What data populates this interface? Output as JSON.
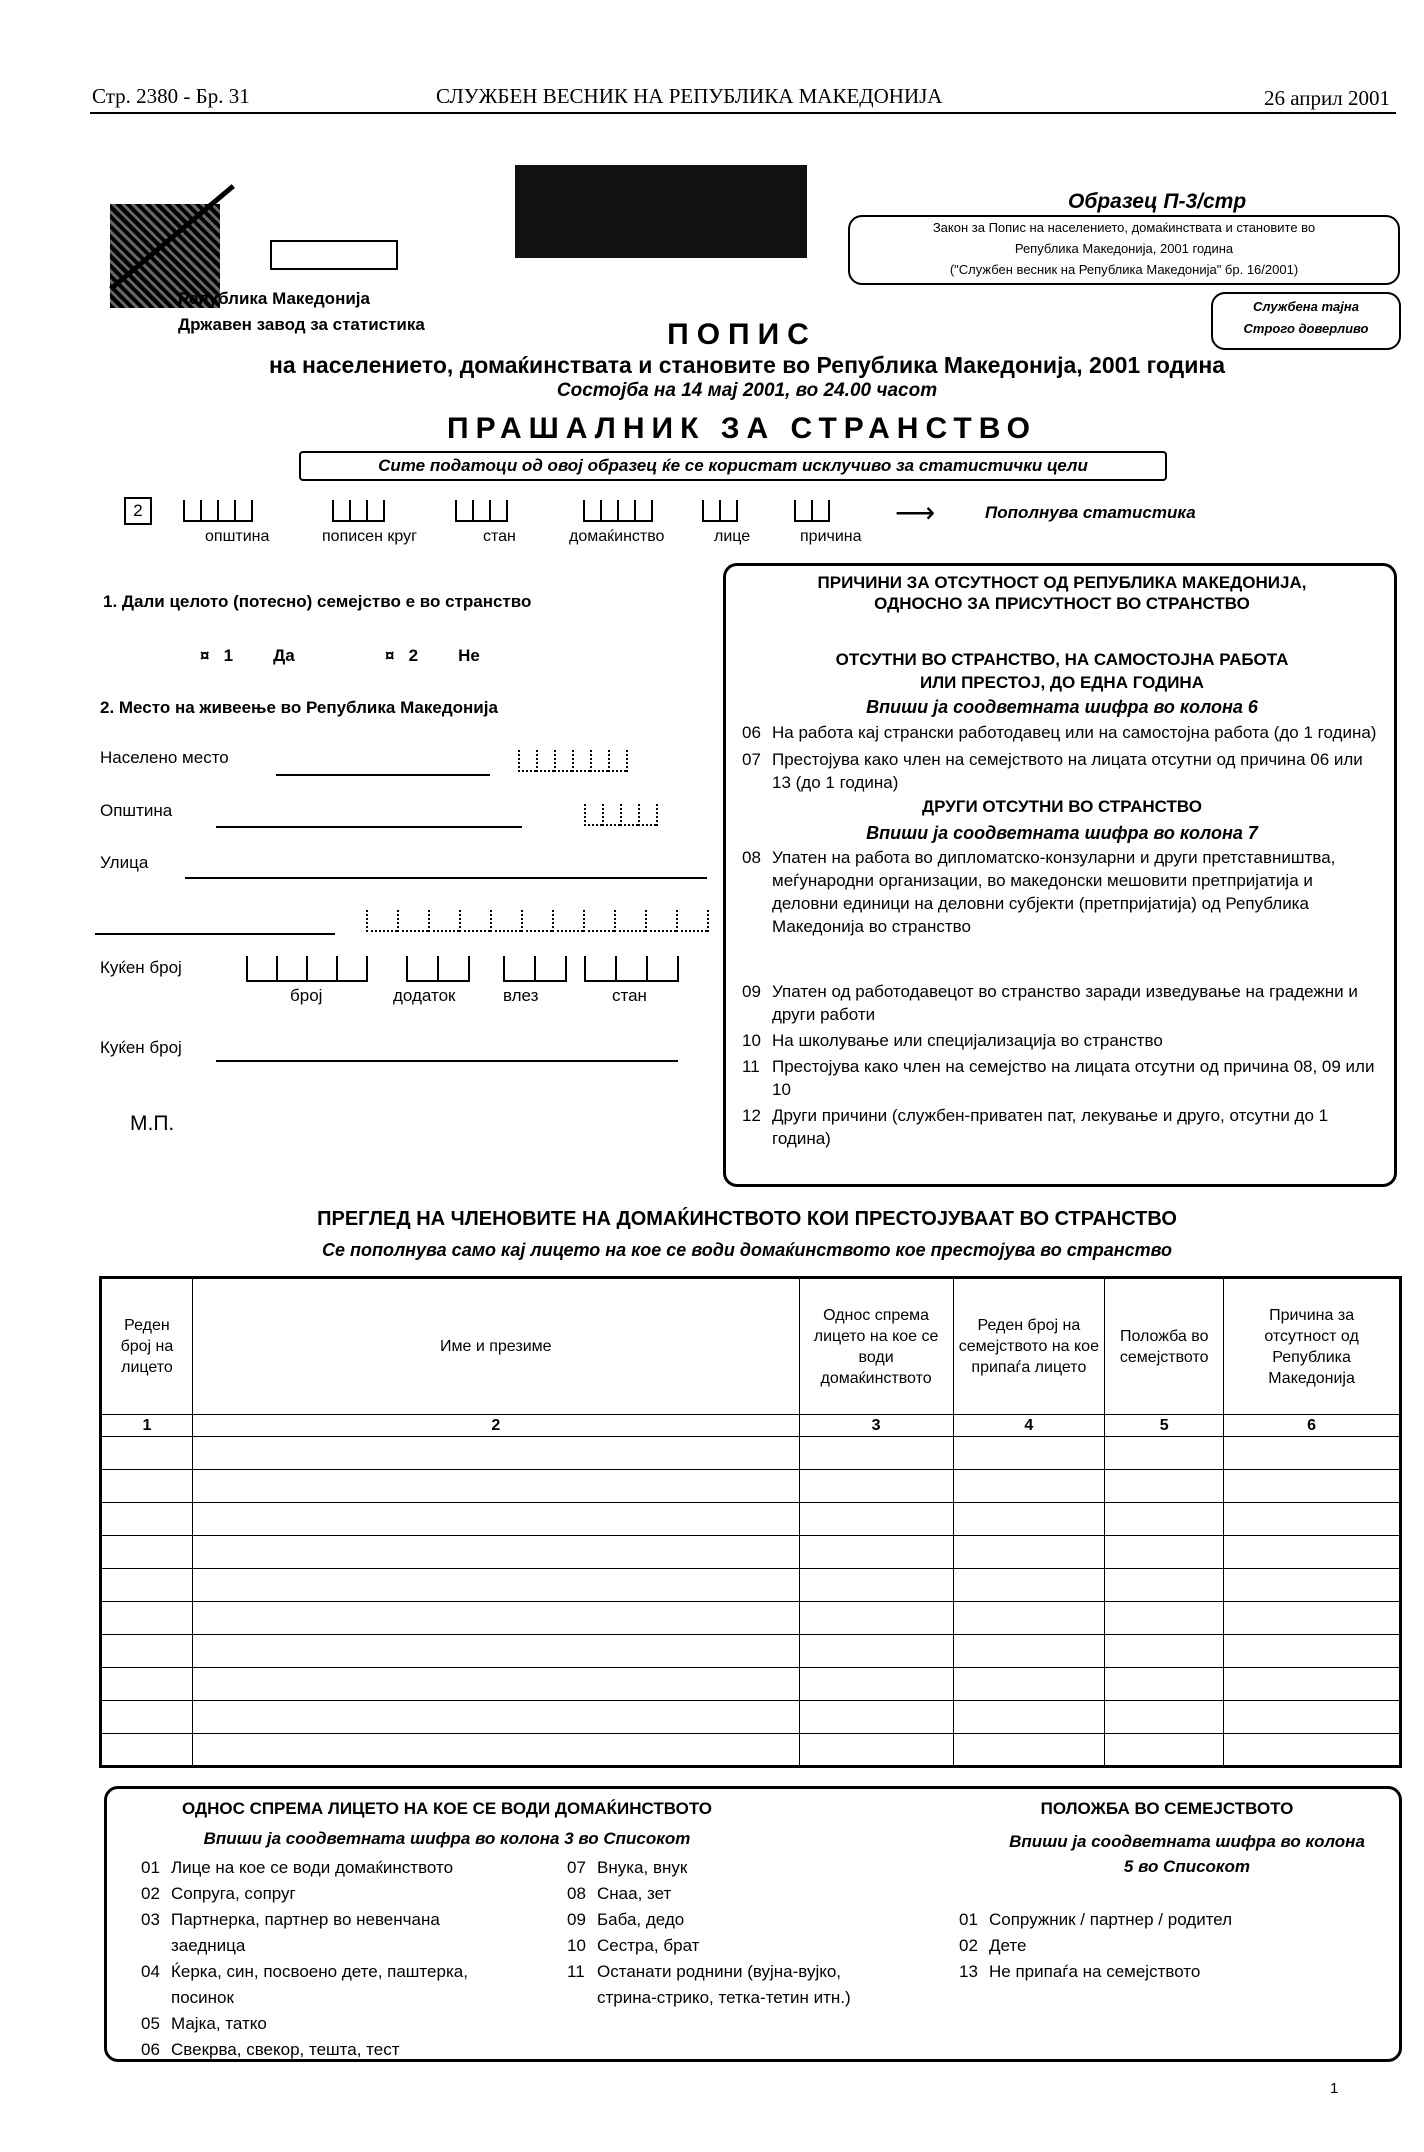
{
  "header": {
    "left": "Стр. 2380 - Бр. 31",
    "center": "СЛУЖБЕН ВЕСНИК НА РЕПУБЛИКА МАКЕДОНИЈА",
    "right": "26 април 2001"
  },
  "issuer": {
    "line1": "Република Македонија",
    "line2": "Државен завод за статистика"
  },
  "form_code": "Образец  П-3/стр",
  "law": {
    "line1": "Закон за  Попис на населението, домаќинствата и становите во",
    "line2": "Република   Македонија, 2001 година",
    "line3": "(\"Службен весник на Република Македонија\" бр.  16/2001)"
  },
  "confidential": {
    "line1": "Службена тајна",
    "line2": "Строго доверливо"
  },
  "title": "ПОПИС",
  "subtitle": "на населението, домаќинствата и становите во Република Македонија, 2001 година",
  "date_line": "Состојба на 14 мај 2001, во 24.00 часот",
  "form_title": "ПРАШАЛНИК ЗА СТРАНСТВО",
  "notice": "Сите податоци од овој образец ќе се користат исклучиво  за статистички цели",
  "codes": {
    "prefix": "2",
    "labels": [
      "општина",
      "пописен круг",
      "стан",
      "домаќинство",
      "лице",
      "причина"
    ],
    "arrow_note": "Пополнува статистика"
  },
  "q1": {
    "label": "1.  Дали целото (потесно) семејство е во странство",
    "options": [
      {
        "code": "1",
        "label": "Да"
      },
      {
        "code": "2",
        "label": "Не"
      }
    ]
  },
  "q2": {
    "label": "2.  Место на живеење во Република Македонија",
    "settlement": "Населено место",
    "municipality": "Општина",
    "street": "Улица",
    "house_no": "Куќен број",
    "house_labels": [
      "број",
      "додаток",
      "влез",
      "стан"
    ],
    "house_no2": "Куќен број",
    "stamp": "М.П."
  },
  "reasons": {
    "title1": "ПРИЧИНИ ЗА ОТСУТНОСТ ОД РЕПУБЛИКА МАКЕДОНИЈА,",
    "title2": "ОДНОСНО ЗА ПРИСУТНОСТ ВО СТРАНСТВО",
    "sec1a": "ОТСУТНИ ВО СТРАНСТВО, НА САМОСТОЈНА РАБОТА",
    "sec1b": "ИЛИ ПРЕСТОЈ, ДО ЕДНА ГОДИНА",
    "sec1_note": "Впиши ја соодветната шифра во колона 6",
    "sec1_items": [
      {
        "code": "06",
        "text": "На работа кај странски работодавец  или на самостојна работа (до 1 година)"
      },
      {
        "code": "07",
        "text": "Престојува како член на семејството на лицата отсутни од причина  06 или 13 (до 1 година)"
      }
    ],
    "sec2": "ДРУГИ ОТСУТНИ ВО СТРАНСТВО",
    "sec2_note": "Впиши ја соодветната шифра во колона 7",
    "sec2_items": [
      {
        "code": "08",
        "text": "Упатен на работа во дипломатско-конзуларни и други претставништва, меѓународни организации, во македонски мешовити претпријатија и деловни единици на деловни субјекти (претпријатија) од Република Македонија во странство"
      },
      {
        "code": "09",
        "text": "Упатен од работодавецот во странство заради изведување на градежни и други работи"
      },
      {
        "code": "10",
        "text": "На школување или специјализација во странство"
      },
      {
        "code": "11",
        "text": "Престојува како член на семејство на лицата отсутни  од причина  08, 09 или 10"
      },
      {
        "code": "12",
        "text": "Други причини (службен-приватен пат, лекување и друго, отсутни до 1 година)"
      }
    ]
  },
  "members": {
    "title": "ПРЕГЛЕД НА ЧЛЕНОВИТЕ НА ДОМАЌИНСТВОТО КОИ ПРЕСТОЈУВААТ ВО СТРАНСТВО",
    "subtitle": "Се пополнува само кај лицето на кое се води домаќинството кое престојува во странство",
    "columns": [
      "Реден број на лицето",
      "Име и презиме",
      "Однос спрема лицето на кое се води домаќинството",
      "Реден број на семејството на кое припаѓа лицето",
      "Положба во семејството",
      "Причина за отсутност од Република Македонија"
    ],
    "column_numbers": [
      "1",
      "2",
      "3",
      "4",
      "5",
      "6"
    ],
    "rows": [
      [
        "",
        "",
        "",
        "",
        "",
        ""
      ],
      [
        "",
        "",
        "",
        "",
        "",
        ""
      ],
      [
        "",
        "",
        "",
        "",
        "",
        ""
      ],
      [
        "",
        "",
        "",
        "",
        "",
        ""
      ],
      [
        "",
        "",
        "",
        "",
        "",
        ""
      ],
      [
        "",
        "",
        "",
        "",
        "",
        ""
      ],
      [
        "",
        "",
        "",
        "",
        "",
        ""
      ],
      [
        "",
        "",
        "",
        "",
        "",
        ""
      ],
      [
        "",
        "",
        "",
        "",
        "",
        ""
      ],
      [
        "",
        "",
        "",
        "",
        "",
        ""
      ]
    ]
  },
  "relation": {
    "title": "ОДНОС СПРЕМА ЛИЦЕТО НА КОЕ СЕ ВОДИ ДОМАЌИНСТВОТО",
    "note": "Впиши ја соодветната шифра во колона 3 во Списокот",
    "col1": [
      {
        "code": "01",
        "text": "Лице на кое се води домаќинството"
      },
      {
        "code": "02",
        "text": "Сопруга, сопруг"
      },
      {
        "code": "03",
        "text": "Партнерка, партнер  во невенчана заедница"
      },
      {
        "code": "04",
        "text": "Ќерка, син, посвоено дете, паштерка, посинок"
      },
      {
        "code": "05",
        "text": "Мајка, татко"
      },
      {
        "code": "06",
        "text": "Свекрва, свекор, тешта, тест"
      }
    ],
    "col2": [
      {
        "code": "07",
        "text": "Внука, внук"
      },
      {
        "code": "08",
        "text": "Снаа, зет"
      },
      {
        "code": "09",
        "text": "Баба, дедо"
      },
      {
        "code": "10",
        "text": "Сестра, брат"
      },
      {
        "code": "11",
        "text": "Останати роднини (вујна-вујко, стрина-стрико, тетка-тетин итн.)"
      }
    ]
  },
  "position": {
    "title": "ПОЛОЖБА ВО СЕМЕЈСТВОТО",
    "note": "Впиши ја соодветната шифра во колона 5 во Списокот",
    "items": [
      {
        "code": "01",
        "text": "Сопружник / партнер / родител"
      },
      {
        "code": "02",
        "text": "Дете"
      },
      {
        "code": "13",
        "text": "Не припаѓа на семејството"
      }
    ]
  },
  "page_number": "1"
}
